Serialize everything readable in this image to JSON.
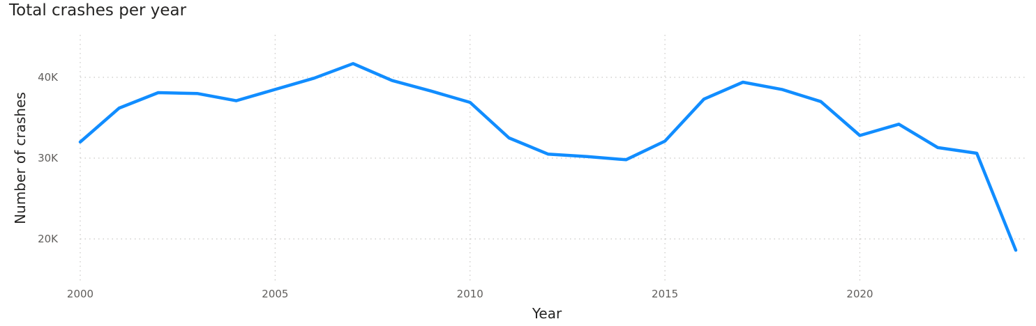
{
  "chart_data": {
    "type": "line",
    "title": "Total crashes per year",
    "xlabel": "Year",
    "ylabel": "Number of crashes",
    "xlim": [
      2000,
      2024
    ],
    "ylim": [
      15000,
      45000
    ],
    "x_ticks": [
      2000,
      2005,
      2010,
      2015,
      2020
    ],
    "x_tick_labels": [
      "2000",
      "2005",
      "2010",
      "2015",
      "2020"
    ],
    "y_ticks": [
      20000,
      30000,
      40000
    ],
    "y_tick_labels": [
      "20K",
      "30K",
      "40K"
    ],
    "grid": true,
    "series": [
      {
        "color": "#118dff",
        "x": [
          2000,
          2001,
          2002,
          2003,
          2004,
          2005,
          2006,
          2007,
          2008,
          2009,
          2010,
          2011,
          2012,
          2013,
          2014,
          2015,
          2016,
          2017,
          2018,
          2019,
          2020,
          2021,
          2022,
          2023,
          2024
        ],
        "values": [
          32000,
          36200,
          38100,
          38000,
          37100,
          38500,
          39900,
          41700,
          39600,
          38300,
          36900,
          32500,
          30500,
          30200,
          29800,
          32100,
          37300,
          39400,
          38500,
          37000,
          32800,
          34200,
          31300,
          30600,
          18600
        ]
      }
    ]
  }
}
